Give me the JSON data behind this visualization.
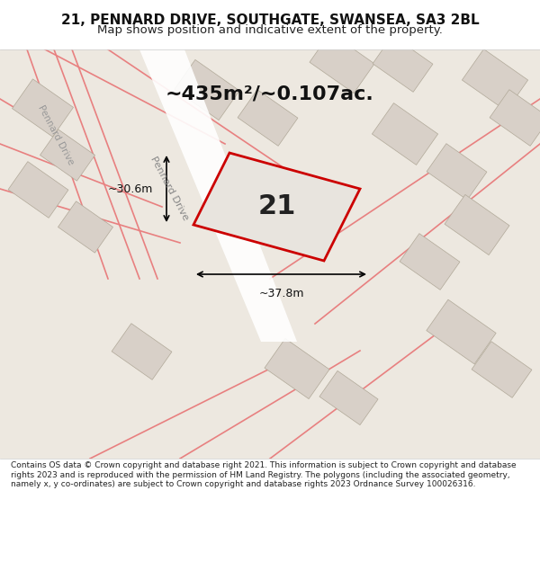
{
  "title_line1": "21, PENNARD DRIVE, SOUTHGATE, SWANSEA, SA3 2BL",
  "title_line2": "Map shows position and indicative extent of the property.",
  "area_text": "~435m²/~0.107ac.",
  "label_21": "21",
  "dim_vertical": "~30.6m",
  "dim_horizontal": "~37.8m",
  "footer_text": "Contains OS data © Crown copyright and database right 2021. This information is subject to Crown copyright and database rights 2023 and is reproduced with the permission of HM Land Registry. The polygons (including the associated geometry, namely x, y co-ordinates) are subject to Crown copyright and database rights 2023 Ordnance Survey 100026316.",
  "bg_color": "#f0ede8",
  "map_bg": "#ede8e0",
  "road_color": "#ffffff",
  "block_color": "#d8d0c8",
  "highlight_block": "#e8e0d8",
  "red_outline_color": "#cc0000",
  "pink_line_color": "#e88080",
  "title_bg": "#ffffff",
  "footer_bg": "#ffffff"
}
